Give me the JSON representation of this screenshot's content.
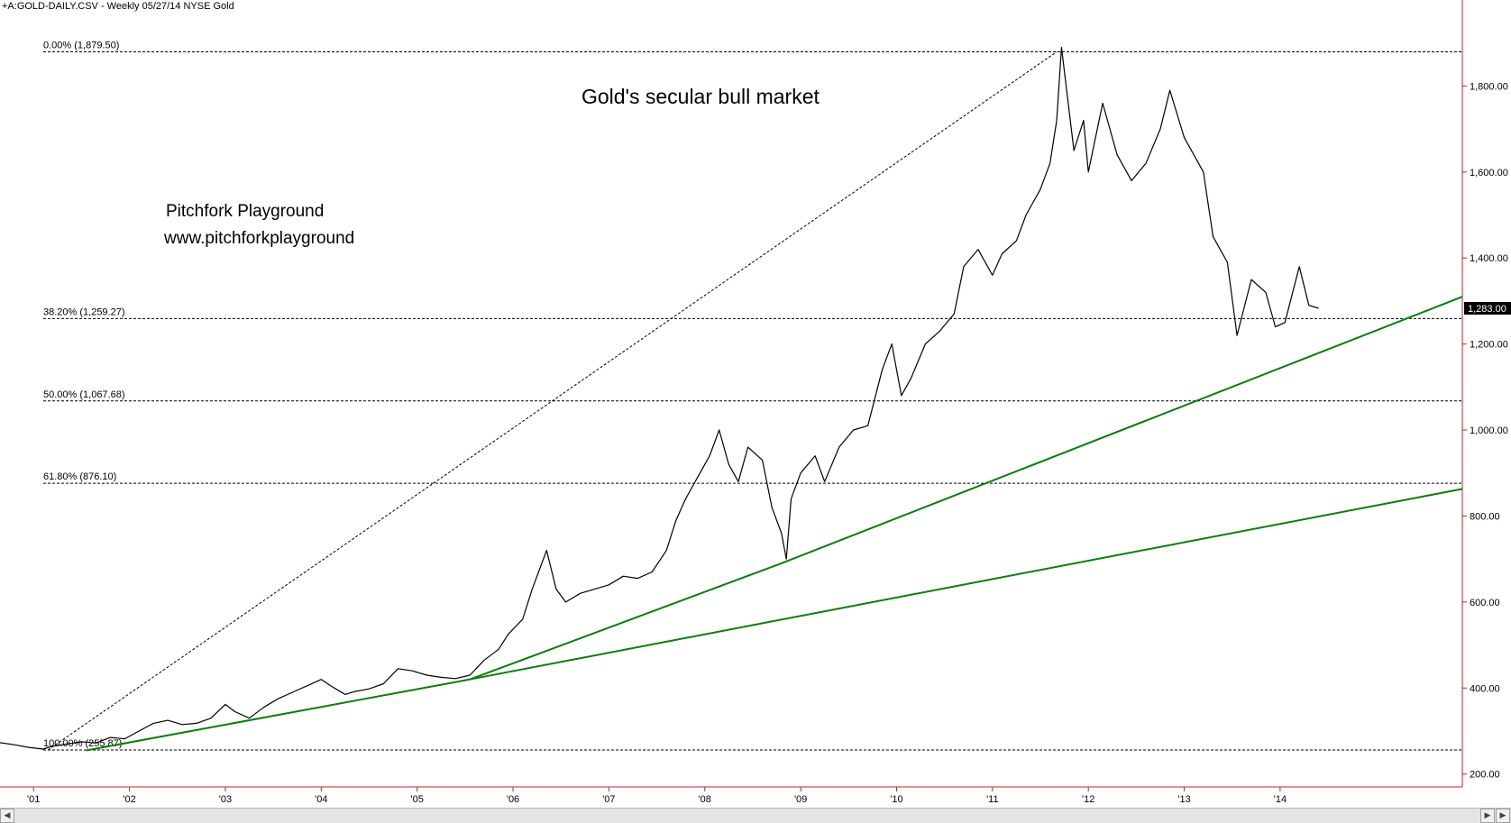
{
  "header": {
    "title_line": "+A:GOLD-DAILY.CSV - Weekly  05/27/14  NYSE  Gold"
  },
  "annotations": {
    "chart_title": "Gold's secular bull market",
    "author": "Pitchfork Playground",
    "website": "www.pitchforkplayground"
  },
  "colors": {
    "price_line": "#000000",
    "trend_lines": "#0a7d0a",
    "right_axis": "#cc2222",
    "price_tag_bg": "#000000",
    "price_tag_text": "#ffffff"
  },
  "icons": {
    "scroll_left": "scroll-left-arrow-icon",
    "scroll_right": "scroll-right-arrow-icon"
  },
  "chart_data": {
    "type": "line",
    "y_axis_side": "right",
    "ylim": [
      170,
      2000
    ],
    "y_ticks": [
      200,
      400,
      600,
      800,
      1000,
      1200,
      1400,
      1600,
      1800
    ],
    "y_tick_labels": [
      "200.00",
      "400.00",
      "600.00",
      "800.00",
      "1,000.00",
      "1,200.00",
      "1,400.00",
      "1,600.00",
      "1,800.00"
    ],
    "xlim": [
      2000.65,
      2015.9
    ],
    "x_ticks": [
      2001,
      2002,
      2003,
      2004,
      2005,
      2006,
      2007,
      2008,
      2009,
      2010,
      2011,
      2012,
      2013,
      2014
    ],
    "x_tick_labels": [
      "'01",
      "'02",
      "'03",
      "'04",
      "'05",
      "'06",
      "'07",
      "'08",
      "'09",
      "'10",
      "'11",
      "'12",
      "'13",
      "'14"
    ],
    "last_price_label": "1,283.00",
    "last_price": 1283,
    "series": [
      {
        "x": [
          2000.65,
          2000.8,
          2000.95,
          2001.1,
          2001.2,
          2001.35,
          2001.5,
          2001.65,
          2001.8,
          2001.95,
          2002.1,
          2002.25,
          2002.4,
          2002.55,
          2002.7,
          2002.85,
          2003.0,
          2003.1,
          2003.25,
          2003.4,
          2003.55,
          2003.7,
          2003.85,
          2004.0,
          2004.1,
          2004.25,
          2004.35,
          2004.5,
          2004.65,
          2004.8,
          2004.95,
          2005.1,
          2005.25,
          2005.4,
          2005.55,
          2005.7,
          2005.85,
          2005.95,
          2006.1,
          2006.2,
          2006.35,
          2006.45,
          2006.55,
          2006.7,
          2006.85,
          2007.0,
          2007.15,
          2007.3,
          2007.45,
          2007.6,
          2007.7,
          2007.8,
          2007.95,
          2008.05,
          2008.15,
          2008.25,
          2008.35,
          2008.45,
          2008.6,
          2008.7,
          2008.8,
          2008.85,
          2008.9,
          2009.0,
          2009.15,
          2009.25,
          2009.4,
          2009.55,
          2009.7,
          2009.85,
          2009.95,
          2010.05,
          2010.15,
          2010.3,
          2010.45,
          2010.6,
          2010.7,
          2010.85,
          2011.0,
          2011.1,
          2011.25,
          2011.35,
          2011.5,
          2011.6,
          2011.67,
          2011.72,
          2011.85,
          2011.95,
          2012.0,
          2012.15,
          2012.3,
          2012.45,
          2012.6,
          2012.75,
          2012.85,
          2013.0,
          2013.1,
          2013.2,
          2013.3,
          2013.45,
          2013.55,
          2013.7,
          2013.85,
          2013.95,
          2014.05,
          2014.2,
          2014.3,
          2014.4
        ],
        "values": [
          273,
          268,
          262,
          258,
          265,
          270,
          275,
          272,
          285,
          282,
          300,
          318,
          325,
          315,
          318,
          330,
          362,
          345,
          330,
          355,
          375,
          390,
          405,
          420,
          405,
          385,
          392,
          398,
          410,
          445,
          440,
          430,
          425,
          422,
          430,
          465,
          490,
          525,
          560,
          630,
          720,
          630,
          600,
          620,
          630,
          640,
          660,
          655,
          670,
          720,
          790,
          840,
          900,
          940,
          1000,
          920,
          880,
          960,
          930,
          820,
          760,
          700,
          840,
          900,
          940,
          880,
          960,
          1000,
          1010,
          1140,
          1200,
          1080,
          1120,
          1200,
          1230,
          1270,
          1380,
          1420,
          1360,
          1410,
          1440,
          1500,
          1560,
          1620,
          1720,
          1890,
          1650,
          1720,
          1600,
          1760,
          1640,
          1580,
          1620,
          1700,
          1790,
          1680,
          1640,
          1600,
          1450,
          1390,
          1220,
          1350,
          1320,
          1240,
          1250,
          1380,
          1290,
          1283
        ]
      }
    ],
    "fibonacci_levels": [
      {
        "label": "0.00% (1,879.50)",
        "value": 1879.5
      },
      {
        "label": "38.20% (1,259.27)",
        "value": 1259.27
      },
      {
        "label": "50.00% (1,067.68)",
        "value": 1067.68
      },
      {
        "label": "61.80% (876.10)",
        "value": 876.1
      },
      {
        "label": "100.00% (255.87)",
        "value": 255.87
      }
    ],
    "fib_swing": {
      "x": [
        2001.15,
        2011.67
      ],
      "y": [
        255.87,
        1879.5
      ]
    },
    "trendlines": [
      {
        "x": [
          2001.55,
          2005.55,
          2015.9
        ],
        "y": [
          255,
          420,
          863
        ]
      },
      {
        "x": [
          2005.55,
          2008.8,
          2015.9
        ],
        "y": [
          420,
          690,
          1310
        ]
      }
    ],
    "grid": false
  }
}
